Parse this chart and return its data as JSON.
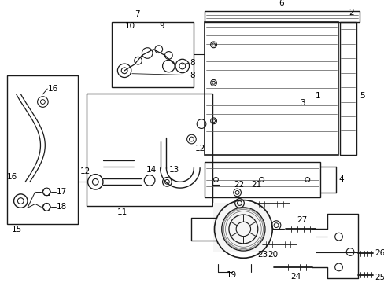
{
  "bg_color": "#ffffff",
  "line_color": "#1a1a1a",
  "fig_width": 4.89,
  "fig_height": 3.6,
  "dpi": 100,
  "label_fs": 7.5,
  "label_fs_sm": 6.5
}
